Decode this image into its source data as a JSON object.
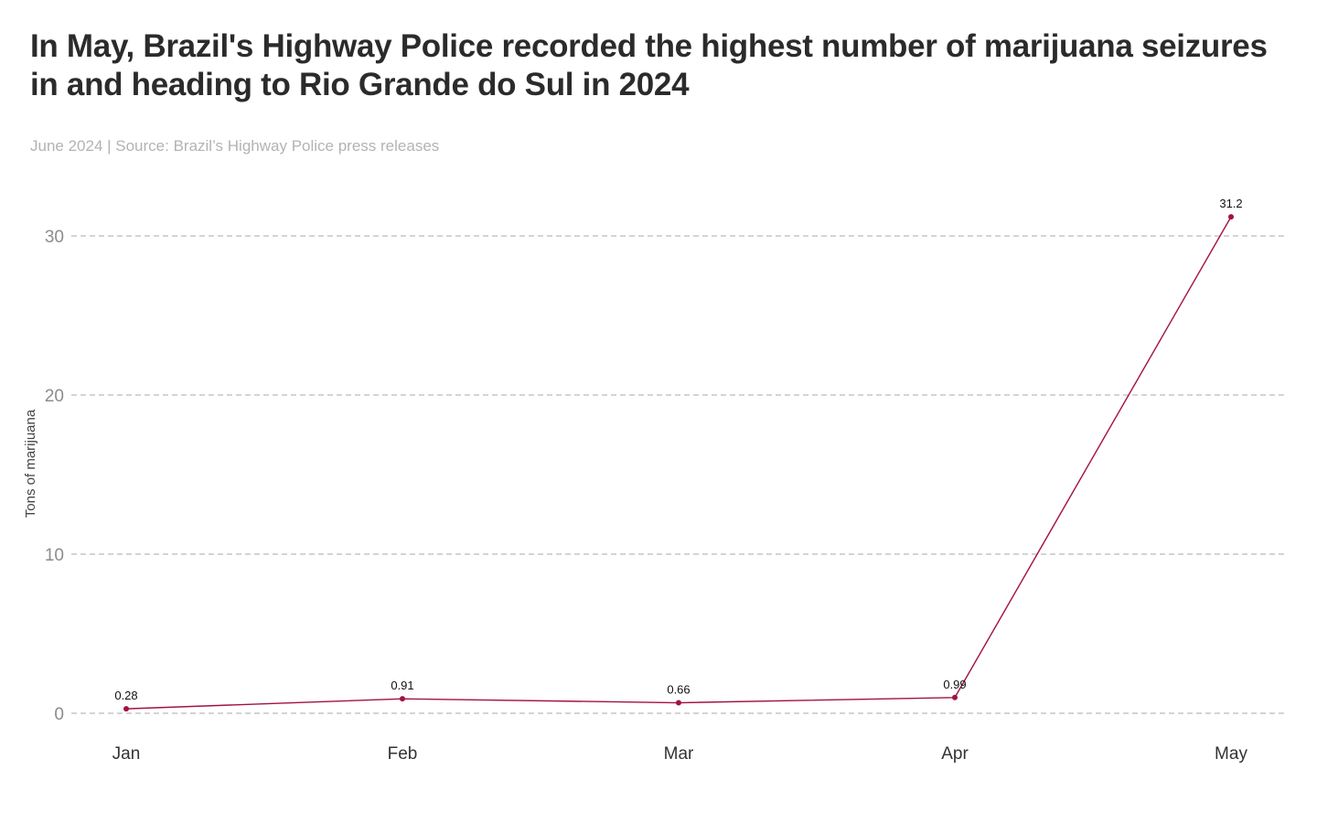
{
  "header": {
    "title": "In May, Brazil's Highway Police recorded the highest number of marijuana seizures in and heading to Rio Grande do Sul in 2024",
    "subtitle": "June 2024 | Source: Brazil’s Highway Police press releases"
  },
  "colors": {
    "line": "#a3123f",
    "grid": "#a8a8a8"
  },
  "chart_data": {
    "type": "line",
    "title": "In May, Brazil's Highway Police recorded the highest number of marijuana seizures in and heading to Rio Grande do Sul in 2024",
    "subtitle": "June 2024 | Source: Brazil’s Highway Police press releases",
    "xlabel": "",
    "ylabel": "Tons of marijuana",
    "categories": [
      "Jan",
      "Feb",
      "Mar",
      "Apr",
      "May"
    ],
    "series": [
      {
        "name": "Tons of marijuana",
        "values": [
          0.28,
          0.91,
          0.66,
          0.99,
          31.2
        ],
        "labels": [
          "0.28",
          "0.91",
          "0.66",
          "0.99",
          "31.2"
        ]
      }
    ],
    "yticks": [
      0,
      10,
      20,
      30
    ],
    "ytick_labels": [
      "0",
      "10",
      "20",
      "30"
    ],
    "ylim": [
      0,
      31.2
    ],
    "grid": true,
    "legend": "none"
  }
}
